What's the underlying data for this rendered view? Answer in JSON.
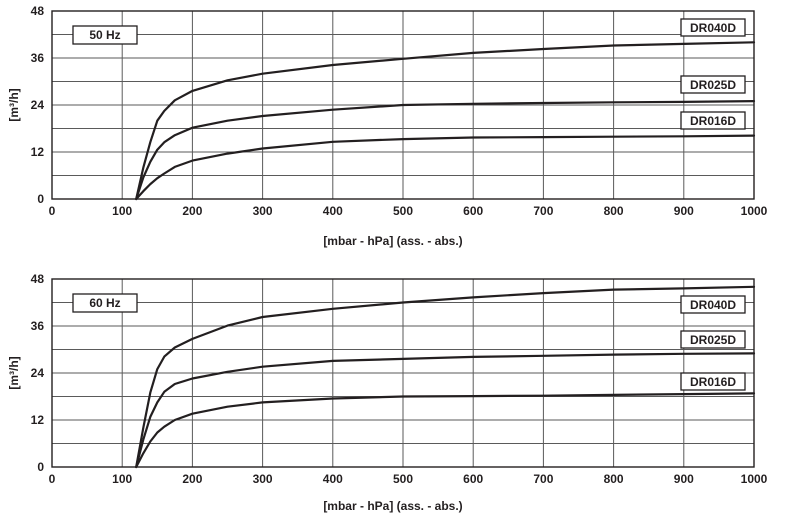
{
  "chart_data": [
    {
      "type": "line",
      "title": "",
      "frequency_label": "50 Hz",
      "xlabel": "[mbar - hPa] (ass. - abs.)",
      "ylabel": "[m³/h]",
      "xlim": [
        0,
        1000
      ],
      "ylim": [
        0,
        48
      ],
      "x_ticks": [
        0,
        100,
        200,
        300,
        400,
        500,
        600,
        700,
        800,
        900,
        1000
      ],
      "y_ticks": [
        0,
        12,
        24,
        36,
        48
      ],
      "grid": true,
      "series": [
        {
          "name": "DR040D",
          "x": [
            120,
            130,
            140,
            150,
            160,
            175,
            200,
            250,
            300,
            400,
            500,
            600,
            700,
            800,
            900,
            1000
          ],
          "y": [
            0,
            8,
            14.5,
            20,
            22.5,
            25.2,
            27.6,
            30.3,
            32,
            34.2,
            35.8,
            37.3,
            38.3,
            39.2,
            39.6,
            40
          ]
        },
        {
          "name": "DR025D",
          "x": [
            120,
            130,
            140,
            150,
            160,
            175,
            200,
            250,
            300,
            400,
            500,
            600,
            700,
            800,
            900,
            1000
          ],
          "y": [
            0,
            5.5,
            9.5,
            12.6,
            14.5,
            16.3,
            18.2,
            20,
            21.2,
            22.8,
            24,
            24.3,
            24.5,
            24.7,
            24.8,
            25
          ]
        },
        {
          "name": "DR016D",
          "x": [
            120,
            130,
            140,
            150,
            160,
            175,
            200,
            250,
            300,
            400,
            500,
            600,
            700,
            800,
            900,
            1000
          ],
          "y": [
            0,
            2,
            3.8,
            5.3,
            6.5,
            8.2,
            9.8,
            11.6,
            12.9,
            14.6,
            15.3,
            15.7,
            15.8,
            15.9,
            16,
            16.2
          ]
        }
      ]
    },
    {
      "type": "line",
      "title": "",
      "frequency_label": "60 Hz",
      "xlabel": "[mbar - hPa] (ass. - abs.)",
      "ylabel": "[m³/h]",
      "xlim": [
        0,
        1000
      ],
      "ylim": [
        0,
        48
      ],
      "x_ticks": [
        0,
        100,
        200,
        300,
        400,
        500,
        600,
        700,
        800,
        900,
        1000
      ],
      "y_ticks": [
        0,
        12,
        24,
        36,
        48
      ],
      "grid": true,
      "series": [
        {
          "name": "DR040D",
          "x": [
            120,
            130,
            140,
            150,
            160,
            175,
            200,
            250,
            300,
            400,
            500,
            600,
            700,
            800,
            900,
            1000
          ],
          "y": [
            0,
            10,
            19,
            25,
            28.2,
            30.5,
            32.7,
            36.1,
            38.3,
            40.4,
            42,
            43.3,
            44.4,
            45.3,
            45.6,
            46
          ]
        },
        {
          "name": "DR025D",
          "x": [
            120,
            130,
            140,
            150,
            160,
            175,
            200,
            250,
            300,
            400,
            500,
            600,
            700,
            800,
            900,
            1000
          ],
          "y": [
            0,
            7,
            12.8,
            16.5,
            19.2,
            21.2,
            22.6,
            24.3,
            25.6,
            27.1,
            27.6,
            28.1,
            28.4,
            28.7,
            28.9,
            29
          ]
        },
        {
          "name": "DR016D",
          "x": [
            120,
            130,
            140,
            150,
            160,
            175,
            200,
            250,
            300,
            400,
            500,
            600,
            700,
            800,
            900,
            1000
          ],
          "y": [
            0,
            3.5,
            6.5,
            8.8,
            10.3,
            12,
            13.6,
            15.4,
            16.5,
            17.5,
            18,
            18.1,
            18.2,
            18.4,
            18.6,
            18.8
          ]
        }
      ]
    }
  ]
}
